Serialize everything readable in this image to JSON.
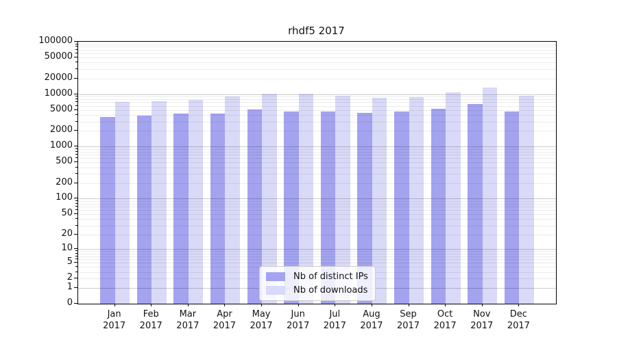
{
  "chart_data": {
    "type": "bar",
    "title": "rhdf5 2017",
    "categories": [
      "Jan",
      "Feb",
      "Mar",
      "Apr",
      "May",
      "Jun",
      "Jul",
      "Aug",
      "Sep",
      "Oct",
      "Nov",
      "Dec"
    ],
    "category_year": "2017",
    "series": [
      {
        "name": "Nb of distinct IPs",
        "color": "#a3a3ef",
        "values": [
          3700,
          3950,
          4300,
          4200,
          5100,
          4650,
          4650,
          4450,
          4700,
          5250,
          6450,
          4650
        ]
      },
      {
        "name": "Nb of downloads",
        "color": "#d9d9f8",
        "values": [
          7000,
          7400,
          7750,
          8900,
          10200,
          10050,
          9250,
          8600,
          8800,
          10800,
          13200,
          9350
        ]
      }
    ],
    "yscale": "log1p",
    "ylim": [
      0,
      100000
    ],
    "yticks": [
      100000,
      50000,
      20000,
      10000,
      5000,
      2000,
      1000,
      500,
      200,
      100,
      50,
      20,
      10,
      5,
      2,
      1,
      0
    ],
    "grid": true,
    "legend_position": "lower center",
    "axis_color": "#000000",
    "background": "#ffffff"
  }
}
